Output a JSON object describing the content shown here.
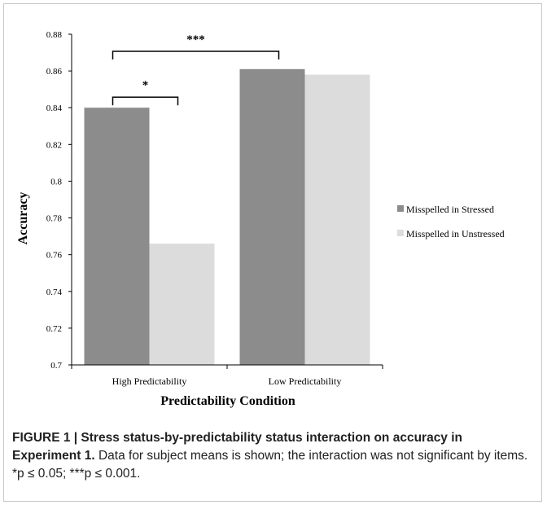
{
  "chart_data": {
    "type": "bar",
    "categories": [
      "High Predictability",
      "Low Predictability"
    ],
    "series": [
      {
        "name": "Misspelled in Stressed",
        "values": [
          0.84,
          0.861
        ],
        "color": "#8c8c8c"
      },
      {
        "name": "Misspelled in Unstressed",
        "values": [
          0.766,
          0.858
        ],
        "color": "#dcdcdc"
      }
    ],
    "xlabel": "Predictability Condition",
    "ylabel": "Accuracy",
    "ylim": [
      0.7,
      0.88
    ],
    "yticks": [
      "0.7",
      "0.72",
      "0.74",
      "0.76",
      "0.78",
      "0.8",
      "0.82",
      "0.84",
      "0.86",
      "0.88"
    ],
    "grid": false,
    "legend_position": "right",
    "annotations": [
      {
        "label": "*",
        "between": "High Predictability stressed vs unstressed"
      },
      {
        "label": "***",
        "between": "High Predictability vs Low Predictability"
      }
    ]
  },
  "caption": {
    "label": "FIGURE 1 | Stress status-by-predictability status interaction on accuracy in Experiment 1.",
    "text": " Data for subject means is shown; the interaction was not significant by items. *p ≤ 0.05; ***p ≤ 0.001."
  }
}
